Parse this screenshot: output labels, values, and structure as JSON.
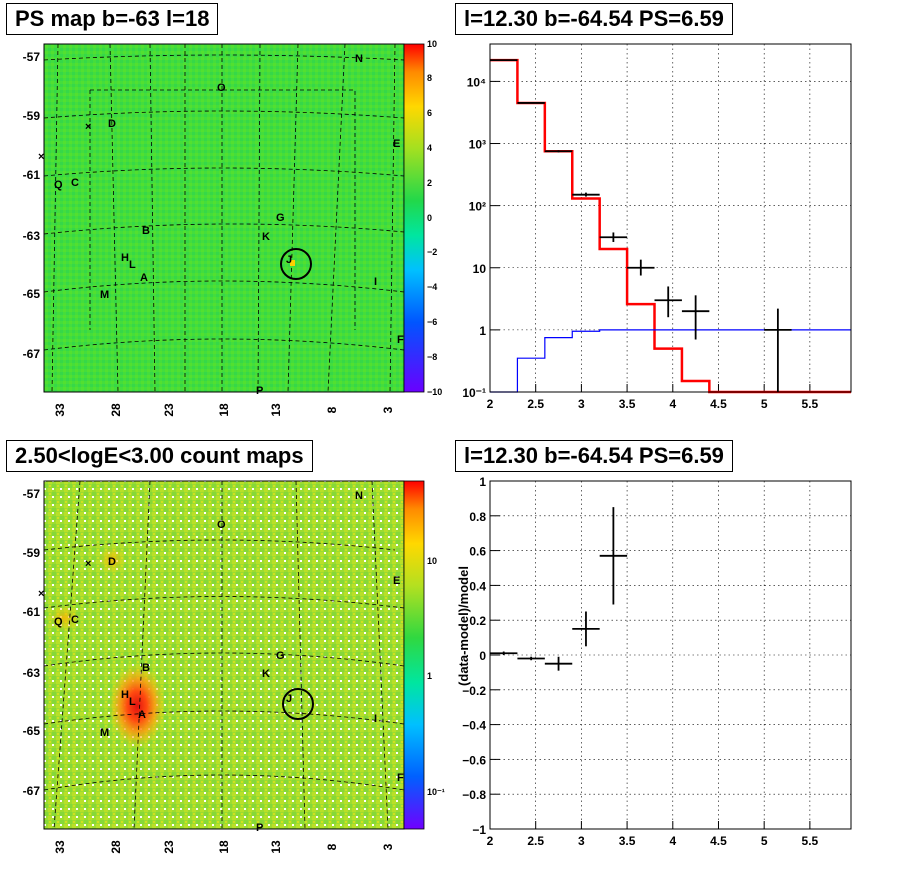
{
  "panels": {
    "ps_map_title": "PS map b=-63 l=18",
    "spectrum_title": "l=12.30 b=-64.54 PS=6.59",
    "count_map_title": "2.50<logE<3.00 count maps",
    "residual_title": "l=12.30 b=-64.54 PS=6.59"
  },
  "maps": {
    "y_ticks": [
      "-57",
      "-59",
      "-61",
      "-63",
      "-65",
      "-67"
    ],
    "x_ticks": [
      "33",
      "28",
      "23",
      "18",
      "13",
      "8",
      "3"
    ],
    "sources": [
      "N",
      "O",
      "D",
      "E",
      "Q",
      "C",
      "G",
      "B",
      "K",
      "H",
      "L",
      "J",
      "A",
      "I",
      "M",
      "F",
      "P"
    ],
    "ps_colorbar_ticks": [
      "10",
      "8",
      "6",
      "4",
      "2",
      "0",
      "−2",
      "−4",
      "−6",
      "−8",
      "−10"
    ],
    "count_colorbar_ticks": [
      "10",
      "1",
      "10⁻¹"
    ]
  },
  "chart_data": [
    {
      "type": "line",
      "title": "l=12.30 b=-64.54 PS=6.59",
      "log_y": true,
      "xlim": [
        2,
        5.95
      ],
      "ylim": [
        0.1,
        40000
      ],
      "x_ticks": [
        "2",
        "2.5",
        "3",
        "3.5",
        "4",
        "4.5",
        "5",
        "5.5"
      ],
      "y_ticks": [
        "10⁻¹",
        "1",
        "10",
        "10²",
        "10³",
        "10⁴"
      ],
      "grid": true,
      "series": [
        {
          "style": "step",
          "color": "#ff0000",
          "bin_edges": [
            2.0,
            2.3,
            2.6,
            2.9,
            3.2,
            3.5,
            3.8,
            4.1,
            4.4,
            5.95
          ],
          "values": [
            22000,
            4500,
            750,
            130,
            20,
            2.6,
            0.5,
            0.15,
            0.1
          ]
        },
        {
          "style": "step",
          "color": "#0000ff",
          "bin_edges": [
            2.0,
            2.3,
            2.6,
            2.9,
            3.2,
            5.95
          ],
          "values": [
            0.1,
            0.35,
            0.75,
            0.95,
            1.0
          ]
        },
        {
          "style": "points",
          "color": "#000000",
          "x": [
            2.15,
            2.45,
            2.75,
            3.05,
            3.35,
            3.65,
            3.95,
            4.25,
            5.15
          ],
          "xerr": [
            0.15,
            0.15,
            0.15,
            0.15,
            0.15,
            0.15,
            0.15,
            0.15,
            0.15
          ],
          "y": [
            22000,
            4500,
            750,
            150,
            31,
            10,
            3,
            2,
            1
          ],
          "y_low": [
            21700,
            4430,
            720,
            140,
            26,
            7.5,
            1.6,
            0.7,
            0.1
          ],
          "y_high": [
            22300,
            4570,
            780,
            162,
            37,
            13.5,
            5,
            3.6,
            2.2
          ]
        }
      ]
    },
    {
      "type": "scatter",
      "title": "l=12.30 b=-64.54 PS=6.59",
      "ylabel": "(data-model)/model",
      "xlim": [
        2,
        5.95
      ],
      "ylim": [
        -1,
        1
      ],
      "x_ticks": [
        "2",
        "2.5",
        "3",
        "3.5",
        "4",
        "4.5",
        "5",
        "5.5"
      ],
      "y_ticks": [
        "−1",
        "−0.8",
        "−0.6",
        "−0.4",
        "−0.2",
        "0",
        "0.2",
        "0.4",
        "0.6",
        "0.8",
        "1"
      ],
      "grid": true,
      "series": [
        {
          "color": "#000000",
          "x": [
            2.15,
            2.45,
            2.75,
            3.05,
            3.35
          ],
          "xerr": [
            0.15,
            0.15,
            0.15,
            0.15,
            0.15
          ],
          "y": [
            0.01,
            -0.02,
            -0.05,
            0.15,
            0.57
          ],
          "y_low": [
            0.0,
            -0.03,
            -0.09,
            0.05,
            0.29
          ],
          "y_high": [
            0.02,
            -0.01,
            -0.01,
            0.25,
            0.85
          ]
        }
      ]
    }
  ]
}
